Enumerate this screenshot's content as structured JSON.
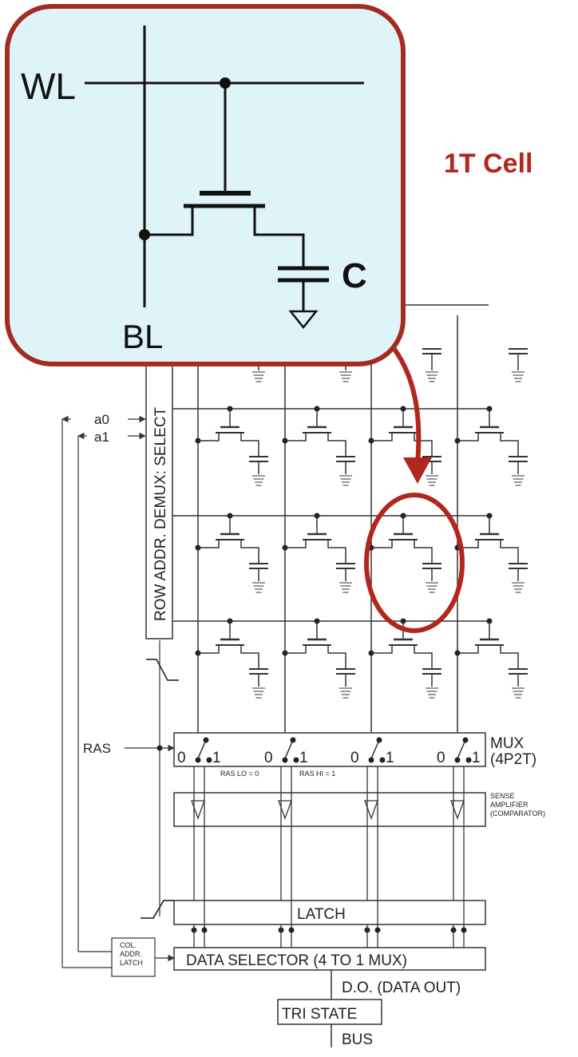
{
  "inset": {
    "wl_label": "WL",
    "bl_label": "BL",
    "c_label": "C",
    "title": "1T Cell",
    "border_color": "#a52a22",
    "fill_color": "#dff4f8"
  },
  "row_decoder": {
    "label": "ROW ADDR. DEMUX: SELECT",
    "addr_a0": "a0",
    "addr_a1": "a1"
  },
  "mux": {
    "label_line1": "MUX",
    "label_line2": "(4P2T)",
    "ras_label": "RAS",
    "sel0": "0",
    "sel1": "1",
    "ras_lo": "RAS LO = 0",
    "ras_hi": "RAS HI = 1"
  },
  "sense_amp": {
    "line1": "SENSE",
    "line2": "AMPLIFIER",
    "line3": "(COMPARATOR)"
  },
  "latch": {
    "label": "LATCH"
  },
  "col_latch": {
    "line1": "COL.",
    "line2": "ADDR.",
    "line3": "LATCH"
  },
  "data_selector": {
    "label": "DATA SELECTOR (4 TO 1 MUX)"
  },
  "data_out": {
    "label": "D.O. (DATA OUT)"
  },
  "tri_state": {
    "label": "TRI STATE"
  },
  "bus": {
    "label": "BUS"
  },
  "highlight_color": "#b3261e"
}
